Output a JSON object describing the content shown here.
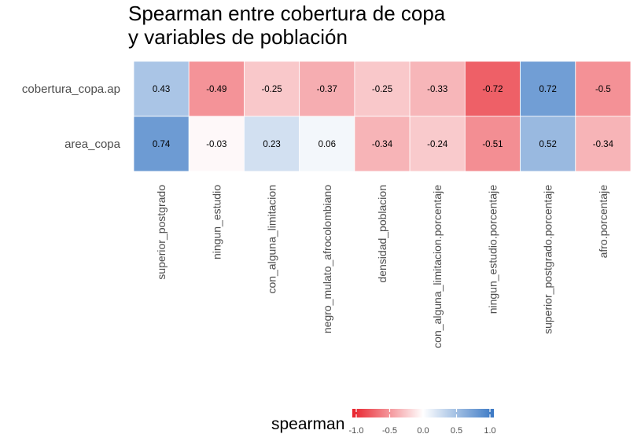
{
  "chart_data": {
    "type": "heatmap",
    "title": "Spearman entre cobertura de copa\ny variables de población",
    "rows": [
      "cobertura_copa.ap",
      "area_copa"
    ],
    "columns": [
      "superior_postgrado",
      "ningun_estudio",
      "con_alguna_limitacion",
      "negro_mulato_afrocolombiano",
      "densidad_poblacion",
      "con_alguna_limitacion.porcentaje",
      "ningun_estudio.porcentaje",
      "superior_postgrado.porcentaje",
      "afro.porcentaje"
    ],
    "values": [
      [
        0.43,
        -0.49,
        -0.25,
        -0.37,
        -0.25,
        -0.33,
        -0.72,
        0.72,
        -0.5
      ],
      [
        0.74,
        -0.03,
        0.23,
        0.06,
        -0.34,
        -0.24,
        -0.51,
        0.52,
        -0.34
      ]
    ],
    "value_labels": [
      [
        "0.43",
        "-0.49",
        "-0.25",
        "-0.37",
        "-0.25",
        "-0.33",
        "-0.72",
        "0.72",
        "-0.5"
      ],
      [
        "0.74",
        "-0.03",
        "0.23",
        "0.06",
        "-0.34",
        "-0.24",
        "-0.51",
        "0.52",
        "-0.34"
      ]
    ],
    "legend": {
      "title": "spearman",
      "position": "bottom",
      "limits": [
        -1.0,
        1.0
      ],
      "ticks": [
        "-1.0",
        "-0.5",
        "0.0",
        "0.5",
        "1.0"
      ],
      "colors": {
        "low": "#e8222c",
        "mid": "#ffffff",
        "high": "#3a78c4"
      }
    },
    "grid": true
  }
}
